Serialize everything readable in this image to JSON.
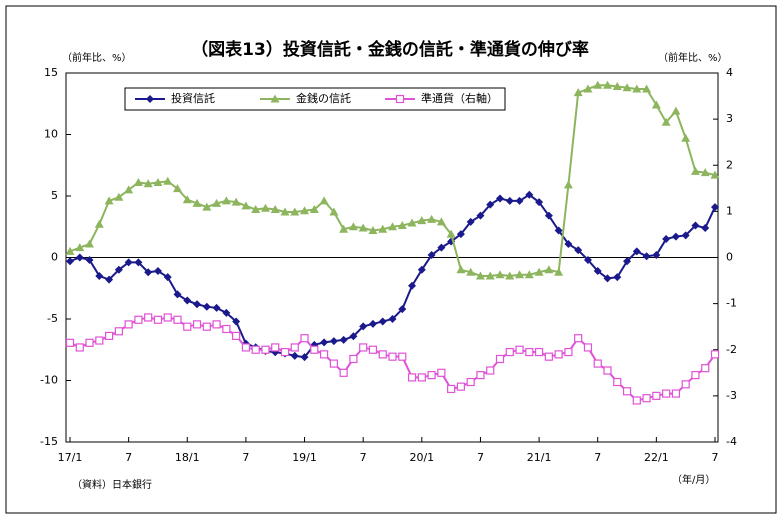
{
  "chart_data": {
    "type": "line",
    "title": "（図表13）投資信託・金銭の信託・準通貨の伸び率",
    "y_label": "（前年比、%）",
    "y2_label": "（前年比、%）",
    "x_label": "（年/月）",
    "source": "（資料）日本銀行",
    "categories": [
      "17/1",
      null,
      null,
      null,
      null,
      null,
      "7",
      null,
      null,
      null,
      null,
      null,
      "18/1",
      null,
      null,
      null,
      null,
      null,
      "7",
      null,
      null,
      null,
      null,
      null,
      "19/1",
      null,
      null,
      null,
      null,
      null,
      "7",
      null,
      null,
      null,
      null,
      null,
      "20/1",
      null,
      null,
      null,
      null,
      null,
      "7",
      null,
      null,
      null,
      null,
      null,
      "21/1",
      null,
      null,
      null,
      null,
      null,
      "7",
      null,
      null,
      null,
      null,
      null,
      "22/1",
      null,
      null,
      null,
      null,
      null,
      "7"
    ],
    "ylim": [
      -15,
      15
    ],
    "yticks": [
      15,
      10,
      5,
      0,
      -5,
      -10,
      -15
    ],
    "y2lim": [
      -4,
      4
    ],
    "y2ticks": [
      4,
      3,
      2,
      1,
      0,
      -1,
      -2,
      -3,
      -4
    ],
    "legend": "top-left",
    "series": [
      {
        "name": "投資信託",
        "color": "#1a1a8c",
        "marker": "diamond",
        "values": [
          -0.3,
          0,
          -0.2,
          -1.5,
          -1.8,
          -1.0,
          -0.4,
          -0.4,
          -1.2,
          -1.1,
          -1.6,
          -3.0,
          -3.5,
          -3.8,
          -4.0,
          -4.1,
          -4.5,
          -5.2,
          -7.0,
          -7.3,
          -7.6,
          -7.7,
          -7.8,
          -8.0,
          -8.1,
          -7.1,
          -6.9,
          -6.8,
          -6.7,
          -6.4,
          -5.6,
          -5.4,
          -5.2,
          -5.0,
          -4.2,
          -2.3,
          -1.0,
          0.2,
          0.8,
          1.3,
          1.9,
          2.9,
          3.4,
          4.3,
          4.8,
          4.6,
          4.6,
          5.1,
          4.5,
          3.4,
          2.2,
          1.1,
          0.6,
          -0.2,
          -1.1,
          -1.7,
          -1.6,
          -0.3,
          0.5,
          0.1,
          0.2,
          1.5,
          1.7,
          1.8,
          2.6,
          2.4,
          4.1
        ]
      },
      {
        "name": "金銭の信託",
        "color": "#8db55e",
        "marker": "triangle",
        "values": [
          0.5,
          0.8,
          1.1,
          2.7,
          4.6,
          4.9,
          5.5,
          6.1,
          6.0,
          6.1,
          6.2,
          5.6,
          4.7,
          4.4,
          4.1,
          4.4,
          4.6,
          4.5,
          4.2,
          3.9,
          4.0,
          3.9,
          3.7,
          3.7,
          3.8,
          3.9,
          4.6,
          3.7,
          2.3,
          2.5,
          2.4,
          2.2,
          2.3,
          2.5,
          2.6,
          2.8,
          3.0,
          3.1,
          2.9,
          1.9,
          -1.0,
          -1.2,
          -1.5,
          -1.5,
          -1.4,
          -1.5,
          -1.4,
          -1.4,
          -1.2,
          -1.0,
          -1.2,
          5.9,
          13.4,
          13.7,
          14.0,
          14.0,
          13.9,
          13.8,
          13.7,
          13.7,
          12.4,
          11.0,
          11.9,
          9.7,
          7.0,
          6.9,
          6.7
        ]
      },
      {
        "name": "準通貨（右軸）",
        "color": "#e052d6",
        "marker": "square",
        "axis": "y2",
        "values": [
          -1.85,
          -1.95,
          -1.85,
          -1.8,
          -1.7,
          -1.6,
          -1.45,
          -1.35,
          -1.3,
          -1.35,
          -1.3,
          -1.35,
          -1.5,
          -1.45,
          -1.5,
          -1.45,
          -1.55,
          -1.7,
          -1.95,
          -2.0,
          -2.0,
          -1.95,
          -2.05,
          -1.95,
          -1.75,
          -2.0,
          -2.1,
          -2.3,
          -2.5,
          -2.2,
          -1.95,
          -2.0,
          -2.1,
          -2.15,
          -2.15,
          -2.6,
          -2.6,
          -2.55,
          -2.5,
          -2.85,
          -2.8,
          -2.7,
          -2.55,
          -2.45,
          -2.2,
          -2.05,
          -2.0,
          -2.05,
          -2.05,
          -2.15,
          -2.1,
          -2.05,
          -1.75,
          -1.95,
          -2.3,
          -2.45,
          -2.7,
          -2.9,
          -3.1,
          -3.05,
          -3.0,
          -2.95,
          -2.95,
          -2.75,
          -2.55,
          -2.4,
          -2.1
        ]
      }
    ]
  }
}
